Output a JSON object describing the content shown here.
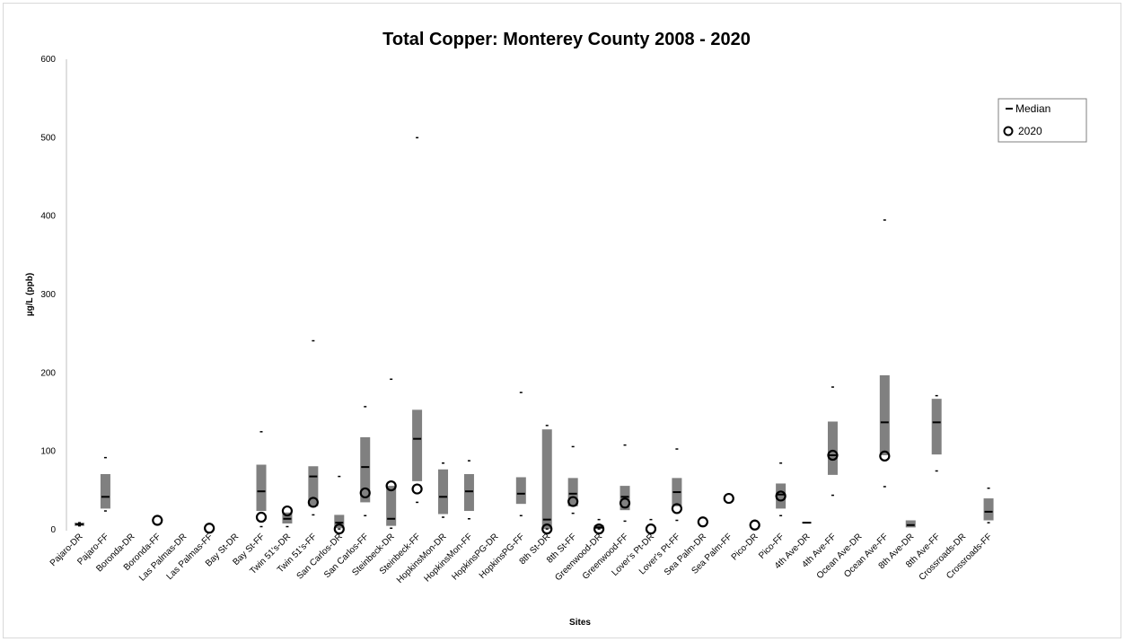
{
  "chart_data": {
    "type": "box",
    "title": "Total Copper:  Monterey County  2008 - 2020",
    "xlabel": "Sites",
    "ylabel": "µg/L  (ppb)",
    "ylim": [
      0,
      600
    ],
    "yticks": [
      0,
      100,
      200,
      300,
      400,
      500,
      600
    ],
    "legend": {
      "position": "top-right",
      "median_label": "Median",
      "point_label": "2020"
    },
    "sites": [
      {
        "name": "Pajaro-DR",
        "q1": 5,
        "q3": 9,
        "median": 7,
        "max": 9,
        "min": 5,
        "y2020": null
      },
      {
        "name": "Pajaro-FF",
        "q1": 27,
        "q3": 71,
        "median": 42,
        "max": 92,
        "min": 24,
        "y2020": null
      },
      {
        "name": "Boronda-DR",
        "q1": null,
        "q3": null,
        "median": null,
        "max": null,
        "min": null,
        "y2020": null
      },
      {
        "name": "Boronda-FF",
        "q1": null,
        "q3": null,
        "median": null,
        "max": null,
        "min": null,
        "y2020": 12
      },
      {
        "name": "Las Palmas-DR",
        "q1": null,
        "q3": null,
        "median": null,
        "max": null,
        "min": null,
        "y2020": null
      },
      {
        "name": "Las Palmas-FF",
        "q1": null,
        "q3": null,
        "median": null,
        "max": null,
        "min": null,
        "y2020": 2
      },
      {
        "name": "Bay St-DR",
        "q1": null,
        "q3": null,
        "median": null,
        "max": null,
        "min": null,
        "y2020": null
      },
      {
        "name": "Bay St-FF",
        "q1": 24,
        "q3": 83,
        "median": 49,
        "max": 125,
        "min": 4,
        "y2020": 16
      },
      {
        "name": "Twin 51's-DR",
        "q1": 8,
        "q3": 22,
        "median": 14,
        "max": null,
        "min": 4,
        "y2020": 24
      },
      {
        "name": "Twin 51's-FF",
        "q1": 30,
        "q3": 81,
        "median": 68,
        "max": 241,
        "min": 19,
        "y2020": 35
      },
      {
        "name": "San Carlos-DR",
        "q1": 2,
        "q3": 19,
        "median": 9,
        "max": 68,
        "min": 1,
        "y2020": 1
      },
      {
        "name": "San Carlos-FF",
        "q1": 35,
        "q3": 118,
        "median": 80,
        "max": 157,
        "min": 18,
        "y2020": 47
      },
      {
        "name": "Steinbeck-DR",
        "q1": 5,
        "q3": 56,
        "median": 14,
        "max": 192,
        "min": 2,
        "y2020": 56
      },
      {
        "name": "Steinbeck-FF",
        "q1": 62,
        "q3": 153,
        "median": 116,
        "max": 500,
        "min": 35,
        "y2020": 52
      },
      {
        "name": "HopkinsMon-DR",
        "q1": 20,
        "q3": 77,
        "median": 42,
        "max": 85,
        "min": 16,
        "y2020": null
      },
      {
        "name": "HopkinsMon-FF",
        "q1": 24,
        "q3": 71,
        "median": 49,
        "max": 88,
        "min": 14,
        "y2020": null
      },
      {
        "name": "HopkinsPG-DR",
        "q1": null,
        "q3": null,
        "median": null,
        "max": null,
        "min": null,
        "y2020": null
      },
      {
        "name": "HopkinsPG-FF",
        "q1": 33,
        "q3": 67,
        "median": 46,
        "max": 175,
        "min": 18,
        "y2020": null
      },
      {
        "name": "8th St-DR",
        "q1": 1,
        "q3": 128,
        "median": 13,
        "max": 133,
        "min": 1,
        "y2020": 1
      },
      {
        "name": "8th St-FF",
        "q1": 30,
        "q3": 66,
        "median": 46,
        "max": 106,
        "min": 21,
        "y2020": 36
      },
      {
        "name": "Greenwood-DR",
        "q1": 1,
        "q3": 6,
        "median": 3,
        "max": 13,
        "min": 1,
        "y2020": 1
      },
      {
        "name": "Greenwood-FF",
        "q1": 25,
        "q3": 56,
        "median": 42,
        "max": 108,
        "min": 11,
        "y2020": 34
      },
      {
        "name": "Lover's Pt-DR",
        "q1": null,
        "q3": null,
        "median": null,
        "max": 13,
        "min": null,
        "y2020": 1
      },
      {
        "name": "Lover's Pt-FF",
        "q1": 30,
        "q3": 66,
        "median": 48,
        "max": 103,
        "min": 12,
        "y2020": 27
      },
      {
        "name": "Sea Palm-DR",
        "q1": null,
        "q3": null,
        "median": null,
        "max": null,
        "min": null,
        "y2020": 10
      },
      {
        "name": "Sea Palm-FF",
        "q1": null,
        "q3": null,
        "median": null,
        "max": null,
        "min": null,
        "y2020": 40
      },
      {
        "name": "Pico-DR",
        "q1": null,
        "q3": null,
        "median": null,
        "max": 12,
        "min": null,
        "y2020": 6
      },
      {
        "name": "Pico-FF",
        "q1": 27,
        "q3": 59,
        "median": 45,
        "max": 85,
        "min": 18,
        "y2020": 43
      },
      {
        "name": "4th Ave-DR",
        "q1": 8,
        "q3": 10,
        "median": 9,
        "max": null,
        "min": null,
        "y2020": null
      },
      {
        "name": "4th Ave-FF",
        "q1": 70,
        "q3": 138,
        "median": 95,
        "max": 182,
        "min": 44,
        "y2020": 95
      },
      {
        "name": "Ocean Ave-DR",
        "q1": null,
        "q3": null,
        "median": null,
        "max": null,
        "min": null,
        "y2020": null
      },
      {
        "name": "Ocean Ave-FF",
        "q1": 95,
        "q3": 197,
        "median": 137,
        "max": 395,
        "min": 55,
        "y2020": 94
      },
      {
        "name": "8th Ave-DR",
        "q1": 3,
        "q3": 12,
        "median": 6,
        "max": null,
        "min": null,
        "y2020": null
      },
      {
        "name": "8th Ave-FF",
        "q1": 96,
        "q3": 167,
        "median": 137,
        "max": 171,
        "min": 75,
        "y2020": null
      },
      {
        "name": "Crossroads-DR",
        "q1": null,
        "q3": null,
        "median": null,
        "max": null,
        "min": null,
        "y2020": null
      },
      {
        "name": "Crossroads-FF",
        "q1": 12,
        "q3": 40,
        "median": 23,
        "max": 53,
        "min": 9,
        "y2020": null
      }
    ]
  }
}
